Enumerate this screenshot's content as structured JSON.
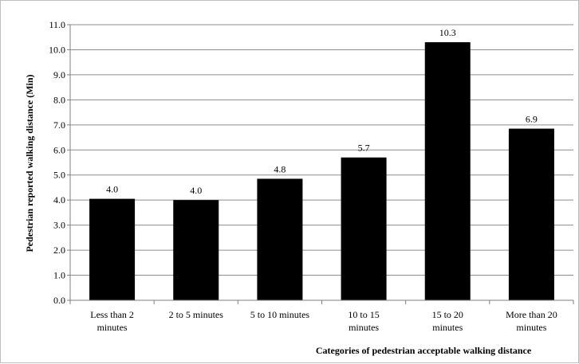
{
  "chart_data": {
    "type": "bar",
    "categories": [
      [
        "Less than 2",
        "minutes"
      ],
      [
        "2 to 5 minutes"
      ],
      [
        "5 to 10 minutes"
      ],
      [
        "10 to 15",
        "minutes"
      ],
      [
        "15 to 20",
        "minutes"
      ],
      [
        "More than 20",
        "minutes"
      ]
    ],
    "values": [
      4.05,
      4.0,
      4.85,
      5.7,
      10.3,
      6.85
    ],
    "data_labels": [
      "4.0",
      "4.0",
      "4.8",
      "5.7",
      "10.3",
      "6.9"
    ],
    "ylabel": "Pedestrian reported walking distance (Min)",
    "xlabel": "Categories of pedestrian acceptable walking distance",
    "ylim": [
      0,
      11
    ],
    "y_ticks": [
      "0.0",
      "1.0",
      "2.0",
      "3.0",
      "4.0",
      "5.0",
      "6.0",
      "7.0",
      "8.0",
      "9.0",
      "10.0",
      "11.0"
    ],
    "grid": true,
    "legend": false,
    "bar_color": "#000000",
    "grid_color": "#8c8c8c"
  }
}
